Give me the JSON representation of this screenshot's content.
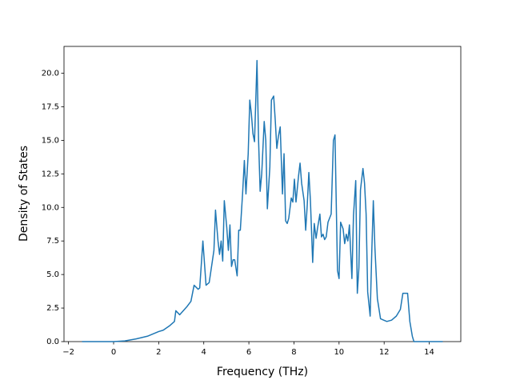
{
  "chart_data": {
    "type": "line",
    "xlabel": "Frequency (THz)",
    "ylabel": "Density of States",
    "xlim": [
      -2.2,
      15.4
    ],
    "ylim": [
      0,
      22
    ],
    "xticks": [
      {
        "value": -2,
        "label": "−2"
      },
      0,
      2,
      4,
      6,
      8,
      10,
      12,
      14
    ],
    "yticks": [
      {
        "value": 0,
        "label": "0.0"
      },
      {
        "value": 2.5,
        "label": "2.5"
      },
      {
        "value": 5,
        "label": "5.0"
      },
      {
        "value": 7.5,
        "label": "7.5"
      },
      {
        "value": 10,
        "label": "10.0"
      },
      {
        "value": 12.5,
        "label": "12.5"
      },
      {
        "value": 15,
        "label": "15.0"
      },
      {
        "value": 17.5,
        "label": "17.5"
      },
      {
        "value": 20,
        "label": "20.0"
      }
    ],
    "series": [
      {
        "color": "#1f77b4",
        "x": [
          -1.4,
          -0.5,
          0,
          0.5,
          1.0,
          1.5,
          2.0,
          2.2,
          2.5,
          2.7,
          2.76,
          2.93,
          3.25,
          3.43,
          3.57,
          3.75,
          3.82,
          3.96,
          4.1,
          4.24,
          4.38,
          4.45,
          4.52,
          4.63,
          4.7,
          4.77,
          4.84,
          4.91,
          5.02,
          5.09,
          5.16,
          5.23,
          5.3,
          5.37,
          5.48,
          5.55,
          5.62,
          5.72,
          5.8,
          5.87,
          5.97,
          6.04,
          6.11,
          6.18,
          6.25,
          6.36,
          6.43,
          6.5,
          6.57,
          6.68,
          6.75,
          6.82,
          6.93,
          7.0,
          7.1,
          7.17,
          7.24,
          7.31,
          7.39,
          7.49,
          7.56,
          7.63,
          7.7,
          7.77,
          7.88,
          7.95,
          8.02,
          8.09,
          8.2,
          8.27,
          8.34,
          8.45,
          8.52,
          8.59,
          8.66,
          8.73,
          8.83,
          8.9,
          8.98,
          9.05,
          9.15,
          9.22,
          9.29,
          9.36,
          9.43,
          9.51,
          9.65,
          9.75,
          9.82,
          9.93,
          10.0,
          10.07,
          10.18,
          10.25,
          10.32,
          10.39,
          10.46,
          10.57,
          10.64,
          10.74,
          10.81,
          10.88,
          10.95,
          11.06,
          11.13,
          11.2,
          11.27,
          11.38,
          11.45,
          11.52,
          11.59,
          11.7,
          11.84,
          11.98,
          12.12,
          12.33,
          12.54,
          12.72,
          12.83,
          13.04,
          13.14,
          13.25,
          13.32,
          14.0,
          14.6
        ],
        "values": [
          0,
          0,
          0,
          0.05,
          0.2,
          0.4,
          0.75,
          0.85,
          1.2,
          1.5,
          2.3,
          2.0,
          2.6,
          3.0,
          4.2,
          3.9,
          4.0,
          7.5,
          4.2,
          4.4,
          6.0,
          6.8,
          9.8,
          7.5,
          6.5,
          7.5,
          6.0,
          10.5,
          8.5,
          6.8,
          8.7,
          5.6,
          6.1,
          6.1,
          4.9,
          8.3,
          8.3,
          11.0,
          13.5,
          11.0,
          14.0,
          18.0,
          17.0,
          15.5,
          14.9,
          20.95,
          15.0,
          11.2,
          12.5,
          16.4,
          15.0,
          9.9,
          13.0,
          18.0,
          18.3,
          16.5,
          14.4,
          15.3,
          16.0,
          11.0,
          14.0,
          9.0,
          8.8,
          9.2,
          10.7,
          10.4,
          12.1,
          10.4,
          12.3,
          13.3,
          11.8,
          10.5,
          8.3,
          10.2,
          12.6,
          10.5,
          5.9,
          8.8,
          7.7,
          8.5,
          9.5,
          7.8,
          8.0,
          7.6,
          7.8,
          8.9,
          9.5,
          15.0,
          15.4,
          5.3,
          4.7,
          8.9,
          8.4,
          7.3,
          8.0,
          7.5,
          8.7,
          4.7,
          9.4,
          12.0,
          3.6,
          5.5,
          11.3,
          12.9,
          11.8,
          9.5,
          3.7,
          1.9,
          6.6,
          10.5,
          7.0,
          3.2,
          1.7,
          1.6,
          1.5,
          1.6,
          1.9,
          2.4,
          3.6,
          3.6,
          1.5,
          0.4,
          0,
          0,
          0
        ]
      }
    ]
  }
}
